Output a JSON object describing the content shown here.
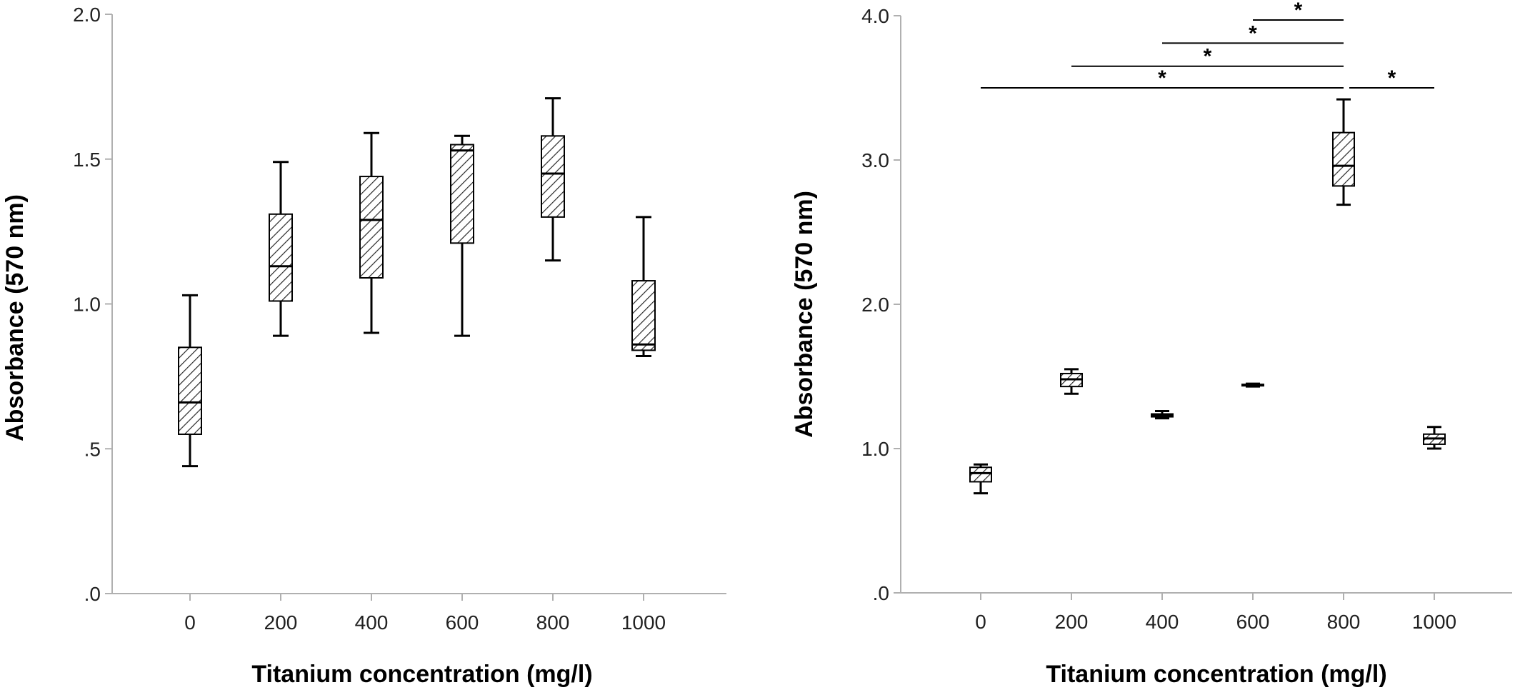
{
  "chart_data": [
    {
      "type": "box",
      "xlabel": "Titanium concentration (mg/l)",
      "ylabel": "Absorbance (570 nm)",
      "ylim": [
        0,
        2.0
      ],
      "yticks": [
        {
          "value": 0,
          "label": ".0"
        },
        {
          "value": 0.5,
          "label": ".5"
        },
        {
          "value": 1.0,
          "label": "1.0"
        },
        {
          "value": 1.5,
          "label": "1.5"
        },
        {
          "value": 2.0,
          "label": "2.0"
        }
      ],
      "categories": [
        "0",
        "200",
        "400",
        "600",
        "800",
        "1000"
      ],
      "boxes": [
        {
          "min": 0.44,
          "q1": 0.55,
          "median": 0.66,
          "q3": 0.85,
          "max": 1.03
        },
        {
          "min": 0.89,
          "q1": 1.01,
          "median": 1.13,
          "q3": 1.31,
          "max": 1.49
        },
        {
          "min": 0.9,
          "q1": 1.09,
          "median": 1.29,
          "q3": 1.44,
          "max": 1.59
        },
        {
          "min": 0.89,
          "q1": 1.21,
          "median": 1.53,
          "q3": 1.55,
          "max": 1.58
        },
        {
          "min": 1.15,
          "q1": 1.3,
          "median": 1.45,
          "q3": 1.58,
          "max": 1.71
        },
        {
          "min": 0.82,
          "q1": 0.84,
          "median": 0.86,
          "q3": 1.08,
          "max": 1.3
        }
      ],
      "grid": false
    },
    {
      "type": "box",
      "xlabel": "Titanium concentration (mg/l)",
      "ylabel": "Absorbance (570 nm)",
      "ylim": [
        0,
        4.0
      ],
      "yticks": [
        {
          "value": 0,
          "label": ".0"
        },
        {
          "value": 1.0,
          "label": "1.0"
        },
        {
          "value": 2.0,
          "label": "2.0"
        },
        {
          "value": 3.0,
          "label": "3.0"
        },
        {
          "value": 4.0,
          "label": "4.0"
        }
      ],
      "categories": [
        "0",
        "200",
        "400",
        "600",
        "800",
        "1000"
      ],
      "boxes": [
        {
          "min": 0.69,
          "q1": 0.77,
          "median": 0.83,
          "q3": 0.87,
          "max": 0.89
        },
        {
          "min": 1.38,
          "q1": 1.43,
          "median": 1.48,
          "q3": 1.52,
          "max": 1.55
        },
        {
          "min": 1.21,
          "q1": 1.22,
          "median": 1.23,
          "q3": 1.24,
          "max": 1.26
        },
        {
          "min": 1.43,
          "q1": 1.435,
          "median": 1.44,
          "q3": 1.445,
          "max": 1.45
        },
        {
          "min": 2.69,
          "q1": 2.82,
          "median": 2.96,
          "q3": 3.19,
          "max": 3.42
        },
        {
          "min": 1.0,
          "q1": 1.03,
          "median": 1.07,
          "q3": 1.1,
          "max": 1.15
        }
      ],
      "significance": [
        {
          "from": "600",
          "to": "800",
          "y": 3.97,
          "label": "*"
        },
        {
          "from": "400",
          "to": "800",
          "y": 3.81,
          "label": "*"
        },
        {
          "from": "200",
          "to": "800",
          "y": 3.65,
          "label": "*"
        },
        {
          "from": "0",
          "to": "800",
          "y": 3.5,
          "label": "*"
        },
        {
          "from": "800",
          "to": "1000",
          "y": 3.5,
          "label": "*"
        }
      ],
      "grid": false
    }
  ]
}
